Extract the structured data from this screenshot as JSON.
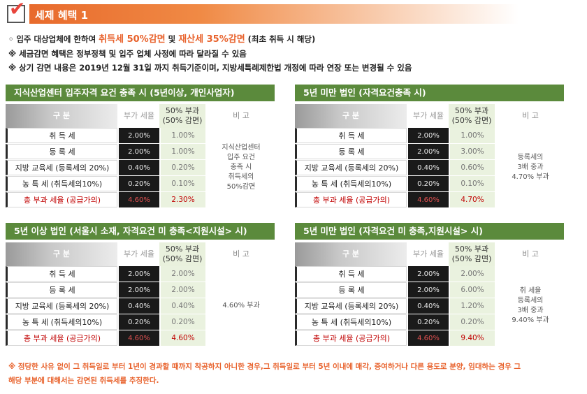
{
  "header": {
    "title": "세제 혜택 1",
    "check_icon": "checkmark-icon"
  },
  "notes": {
    "line1_prefix": "◦ 입주 대상업체에 한하여 ",
    "line1_hl1": "취득세 50%감면",
    "line1_mid": " 및 ",
    "line1_hl2": "재산세 35%감면",
    "line1_suffix": " (최초 취득 시 해당)",
    "line2": "※ 세금감면 혜택은 정부정책 및 입주 업체 사정에 따라 달라질 수 있음",
    "line3": "※ 상기 감면 내용은 2019년 12월 31일 까지 취득기준이며, 지방세특례제한법 개정에 따라 연장 또는 변경될 수 있음"
  },
  "columns": {
    "gubun": "구 분",
    "rate": "부가 세율",
    "half": "50% 부과\n(50% 감면)",
    "note": "비 고"
  },
  "panels": [
    {
      "title": "지식산업센터 입주자격 요건 충족 시 (5년이상, 개인사업자)",
      "rows": [
        {
          "name": "취 득 세",
          "rate": "2.00%",
          "half": "1.00%"
        },
        {
          "name": "등 록 세",
          "rate": "2.00%",
          "half": "1.00%"
        },
        {
          "name": "지방 교육세 (등록세의 20%)",
          "rate": "0.40%",
          "half": "0.20%"
        },
        {
          "name": "농 특 세 (취득세의10%)",
          "rate": "0.20%",
          "half": "0.10%"
        },
        {
          "name": "총 부과 세율 (공급가의)",
          "rate": "4.60%",
          "half": "2.30%"
        }
      ],
      "note": "지식산업센터\n입주 요건\n충족 시\n취득세의\n50%감면"
    },
    {
      "title": "5년 미만 법인 (자격요건충족 시)",
      "rows": [
        {
          "name": "취 득 세",
          "rate": "2.00%",
          "half": "1.00%"
        },
        {
          "name": "등 록 세",
          "rate": "2.00%",
          "half": "3.00%"
        },
        {
          "name": "지방 교육세 (등록세의 20%)",
          "rate": "0.40%",
          "half": "0.60%"
        },
        {
          "name": "농 특 세 (취득세의10%)",
          "rate": "0.20%",
          "half": "0.10%"
        },
        {
          "name": "총 부과 세율 (공급가의)",
          "rate": "4.60%",
          "half": "4.70%"
        }
      ],
      "note": "등록세의\n3배 중과\n4.70% 부과"
    },
    {
      "title": "5년 이상 법인 (서울시 소재, 자격요건 미 충족<지원시설> 시)",
      "rows": [
        {
          "name": "취 득 세",
          "rate": "2.00%",
          "half": "2.00%"
        },
        {
          "name": "등 록 세",
          "rate": "2.00%",
          "half": "2.00%"
        },
        {
          "name": "지방 교육세 (등록세의 20%)",
          "rate": "0.40%",
          "half": "0.40%"
        },
        {
          "name": "농 특 세 (취득세의10%)",
          "rate": "0.20%",
          "half": "0.20%"
        },
        {
          "name": "총 부과 세율 (공급가의)",
          "rate": "4.60%",
          "half": "4.60%"
        }
      ],
      "note": "4.60% 부과"
    },
    {
      "title": "5년 미만 법인 (자격요건 미 충족,지원시설> 시)",
      "rows": [
        {
          "name": "취 득 세",
          "rate": "2.00%",
          "half": "2.00%"
        },
        {
          "name": "등 록 세",
          "rate": "2.00%",
          "half": "6.00%"
        },
        {
          "name": "지방 교육세 (등록세의 20%)",
          "rate": "0.40%",
          "half": "1.20%"
        },
        {
          "name": "농 특 세 (취득세의10%)",
          "rate": "0.20%",
          "half": "0.20%"
        },
        {
          "name": "총 부과 세율 (공급가의)",
          "rate": "4.60%",
          "half": "9.40%"
        }
      ],
      "note": "취 세율\n등록세의\n3배 중과\n9.40% 부과"
    }
  ],
  "footer": {
    "line1": "※ 정당한 사유 없이 그 취득일로 부터 1년이 경과할 때까지 착공하지 아니한 경우,그 취득일로 부터 5년 이내에 매각, 증여하거나 다른 용도로 분양, 임대하는 경우 그",
    "line2": "해당 부분에 대해서는 감면된 취득세를 추징한다."
  }
}
